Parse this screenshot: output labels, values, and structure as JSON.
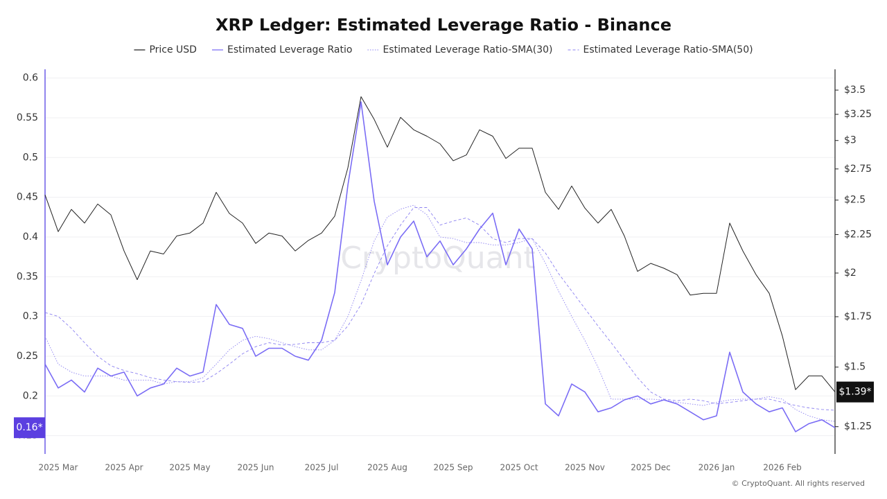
{
  "chart_data": {
    "type": "line",
    "title": "XRP Ledger: Estimated Leverage Ratio - Binance",
    "watermark": "CryptoQuant",
    "copyright": "© CryptoQuant. All rights reserved",
    "legend": "top",
    "grid": true,
    "y2log": true,
    "categories": [
      null,
      "2025 Mar",
      null,
      null,
      null,
      null,
      "2025 Apr",
      null,
      null,
      null,
      null,
      "2025 May",
      null,
      null,
      null,
      null,
      "2025 Jun",
      null,
      null,
      null,
      null,
      "2025 Jul",
      null,
      null,
      null,
      null,
      "2025 Aug",
      null,
      null,
      null,
      null,
      "2025 Sep",
      null,
      null,
      null,
      null,
      "2025 Oct",
      null,
      null,
      null,
      null,
      "2025 Nov",
      null,
      null,
      null,
      null,
      "2025 Dec",
      null,
      null,
      null,
      null,
      "2026 Jan",
      null,
      null,
      null,
      null,
      "2026 Feb",
      null,
      null,
      null,
      null
    ],
    "ylim": [
      0.127,
      0.611
    ],
    "yticks": [
      0.15,
      0.2,
      0.25,
      0.3,
      0.35,
      0.4,
      0.45,
      0.5,
      0.55,
      0.6
    ],
    "y2lim": [
      1.15,
      3.73
    ],
    "y2ticks": [
      {
        "value": 1.25,
        "label": "$1.25"
      },
      {
        "value": 1.5,
        "label": "$1.5"
      },
      {
        "value": 1.75,
        "label": "$1.75"
      },
      {
        "value": 2,
        "label": "$2"
      },
      {
        "value": 2.25,
        "label": "$2.25"
      },
      {
        "value": 2.5,
        "label": "$2.5"
      },
      {
        "value": 2.75,
        "label": "$2.75"
      },
      {
        "value": 3,
        "label": "$3"
      },
      {
        "value": 3.25,
        "label": "$3.25"
      },
      {
        "value": 3.5,
        "label": "$3.5"
      }
    ],
    "series": [
      {
        "name": "Price USD",
        "color": "#222222",
        "axis": "y2",
        "dash": "solid",
        "marker_label": "$1.39*",
        "values": [
          2.54,
          2.27,
          2.43,
          2.33,
          2.47,
          2.39,
          2.14,
          1.96,
          2.14,
          2.12,
          2.24,
          2.26,
          2.33,
          2.56,
          2.4,
          2.33,
          2.19,
          2.26,
          2.24,
          2.14,
          2.21,
          2.26,
          2.38,
          2.76,
          3.43,
          3.2,
          2.94,
          3.22,
          3.1,
          3.04,
          2.97,
          2.82,
          2.87,
          3.1,
          3.04,
          2.84,
          2.93,
          2.93,
          2.56,
          2.43,
          2.61,
          2.44,
          2.33,
          2.43,
          2.24,
          2.01,
          2.06,
          2.03,
          1.99,
          1.87,
          1.88,
          1.88,
          2.33,
          2.14,
          1.99,
          1.88,
          1.65,
          1.4,
          1.46,
          1.46,
          1.39
        ]
      },
      {
        "name": "Estimated Leverage Ratio",
        "color": "#7a6cf5",
        "axis": "y",
        "dash": "solid",
        "marker_label": "0.16*",
        "values": [
          0.24,
          0.21,
          0.22,
          0.205,
          0.235,
          0.225,
          0.23,
          0.2,
          0.21,
          0.215,
          0.235,
          0.225,
          0.23,
          0.315,
          0.29,
          0.285,
          0.25,
          0.26,
          0.26,
          0.25,
          0.245,
          0.27,
          0.33,
          0.465,
          0.57,
          0.445,
          0.365,
          0.4,
          0.42,
          0.375,
          0.395,
          0.365,
          0.385,
          0.41,
          0.43,
          0.365,
          0.41,
          0.385,
          0.19,
          0.175,
          0.215,
          0.205,
          0.18,
          0.185,
          0.195,
          0.2,
          0.19,
          0.195,
          0.19,
          0.18,
          0.17,
          0.175,
          0.255,
          0.205,
          0.19,
          0.18,
          0.185,
          0.155,
          0.165,
          0.17,
          0.16
        ]
      },
      {
        "name": "Estimated Leverage Ratio-SMA(30)",
        "color": "#8b80f0",
        "axis": "y",
        "dash": "dotted",
        "values": [
          0.275,
          0.24,
          0.23,
          0.225,
          0.225,
          0.225,
          0.22,
          0.22,
          0.22,
          0.215,
          0.218,
          0.218,
          0.223,
          0.24,
          0.258,
          0.27,
          0.275,
          0.272,
          0.267,
          0.262,
          0.258,
          0.258,
          0.27,
          0.3,
          0.345,
          0.395,
          0.425,
          0.435,
          0.44,
          0.428,
          0.4,
          0.398,
          0.393,
          0.393,
          0.39,
          0.39,
          0.393,
          0.398,
          0.367,
          0.332,
          0.3,
          0.27,
          0.236,
          0.196,
          0.196,
          0.196,
          0.196,
          0.195,
          0.192,
          0.19,
          0.188,
          0.192,
          0.195,
          0.196,
          0.196,
          0.199,
          0.196,
          0.183,
          0.175,
          0.17,
          0.168
        ]
      },
      {
        "name": "Estimated Leverage Ratio-SMA(50)",
        "color": "#8b80f0",
        "axis": "y",
        "dash": "dashed",
        "values": [
          0.305,
          0.3,
          0.285,
          0.267,
          0.25,
          0.238,
          0.232,
          0.228,
          0.223,
          0.22,
          0.218,
          0.217,
          0.218,
          0.228,
          0.24,
          0.253,
          0.262,
          0.267,
          0.264,
          0.265,
          0.267,
          0.267,
          0.27,
          0.288,
          0.315,
          0.354,
          0.389,
          0.415,
          0.437,
          0.437,
          0.415,
          0.42,
          0.424,
          0.415,
          0.398,
          0.393,
          0.398,
          0.398,
          0.38,
          0.354,
          0.332,
          0.31,
          0.288,
          0.267,
          0.245,
          0.223,
          0.205,
          0.196,
          0.194,
          0.196,
          0.194,
          0.19,
          0.192,
          0.194,
          0.196,
          0.196,
          0.192,
          0.188,
          0.185,
          0.183,
          0.182
        ]
      }
    ]
  }
}
